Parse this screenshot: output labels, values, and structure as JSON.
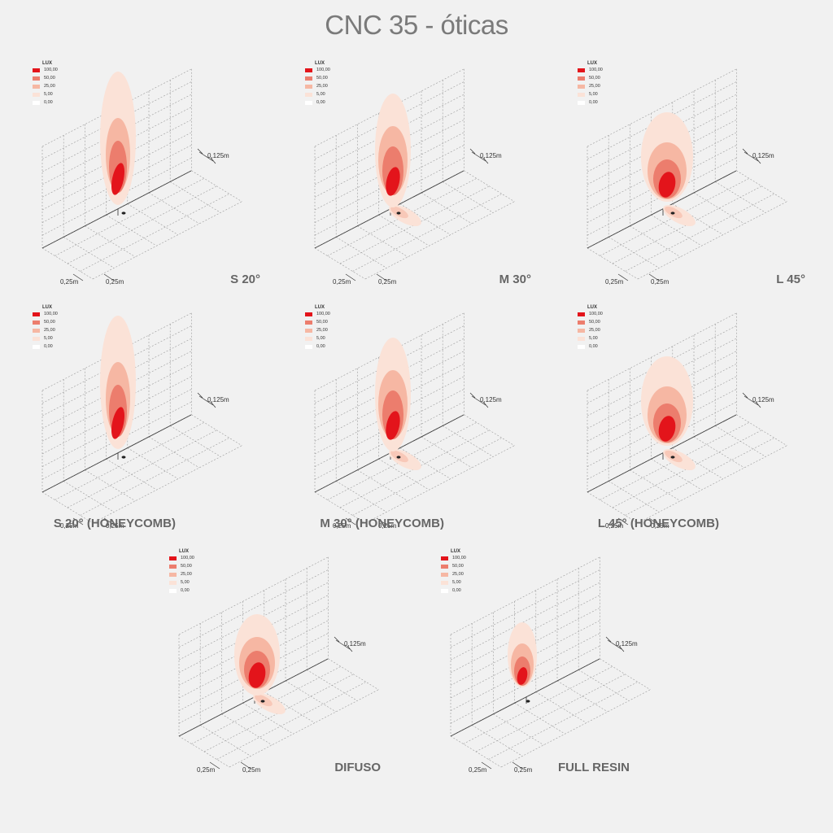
{
  "title": "CNC 35 - óticas",
  "legend": {
    "title": "LUX",
    "levels": [
      {
        "value": "100,00",
        "color": "#e3141b"
      },
      {
        "value": "50,00",
        "color": "#ec7d6d"
      },
      {
        "value": "25,00",
        "color": "#f6b7a3"
      },
      {
        "value": "5,00",
        "color": "#fbe2d7"
      },
      {
        "value": "0,00",
        "color": "#ffffff"
      }
    ]
  },
  "scale": {
    "depth": "0,25m",
    "width": "0,25m",
    "height": "0,125m"
  },
  "panels": [
    {
      "label": "S 20°",
      "optic": "S",
      "honeycomb": false
    },
    {
      "label": "M 30°",
      "optic": "M",
      "honeycomb": false
    },
    {
      "label": "L 45°",
      "optic": "L",
      "honeycomb": false
    },
    {
      "label": "S 20° (HONEYCOMB)",
      "optic": "S",
      "honeycomb": true
    },
    {
      "label": "M 30° (HONEYCOMB)",
      "optic": "M",
      "honeycomb": true
    },
    {
      "label": "L 45° (HONEYCOMB)",
      "optic": "L",
      "honeycomb": true
    },
    {
      "label": "DIFUSO",
      "optic": "DIF",
      "honeycomb": false
    },
    {
      "label": "FULL RESIN",
      "optic": "FR",
      "honeycomb": false
    }
  ]
}
